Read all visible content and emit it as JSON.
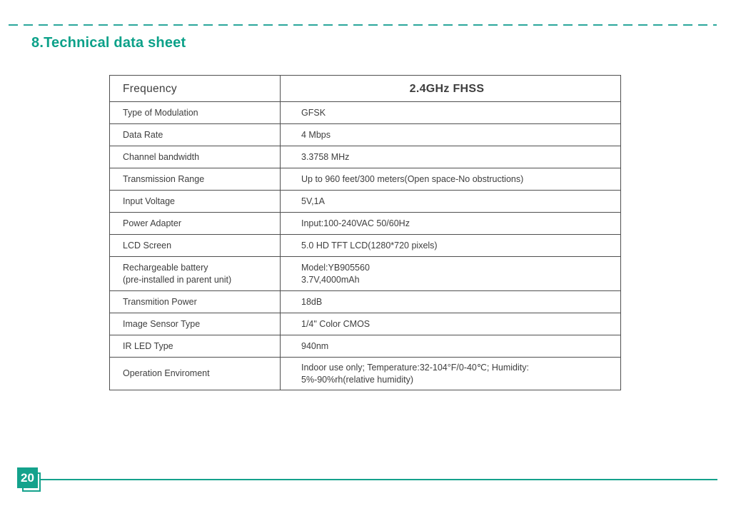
{
  "page": {
    "title": "8.Technical data sheet",
    "page_number": "20"
  },
  "colors": {
    "brand_teal": "#14a28c",
    "title_teal": "#0ca189",
    "dash_teal": "#2aa79b",
    "text_gray": "#3e3e3e",
    "table_border": "#4f4f4f"
  },
  "table": {
    "header": {
      "label": "Frequency",
      "value": "2.4GHz FHSS"
    },
    "rows": [
      {
        "label": "Type of Modulation",
        "value": "GFSK"
      },
      {
        "label": "Data Rate",
        "value": "4 Mbps"
      },
      {
        "label": "Channel bandwidth",
        "value": "3.3758 MHz"
      },
      {
        "label": "Transmission Range",
        "value": "Up to 960 feet/300 meters(Open space-No obstructions)"
      },
      {
        "label": "Input Voltage",
        "value": "5V,1A"
      },
      {
        "label": "Power Adapter",
        "value": "Input:100-240VAC 50/60Hz"
      },
      {
        "label": "LCD Screen",
        "value": "5.0 HD TFT LCD(1280*720 pixels)"
      },
      {
        "label": "Rechargeable battery\n(pre-installed in parent unit)",
        "value": "Model:YB905560\n3.7V,4000mAh"
      },
      {
        "label": "Transmition Power",
        "value": "18dB"
      },
      {
        "label": "Image Sensor Type",
        "value": "1/4\" Color CMOS"
      },
      {
        "label": "IR LED Type",
        "value": "940nm"
      },
      {
        "label": "Operation Enviroment",
        "value": "Indoor use only; Temperature:32-104°F/0-40℃; Humidity:\n5%-90%rh(relative humidity)"
      }
    ]
  }
}
